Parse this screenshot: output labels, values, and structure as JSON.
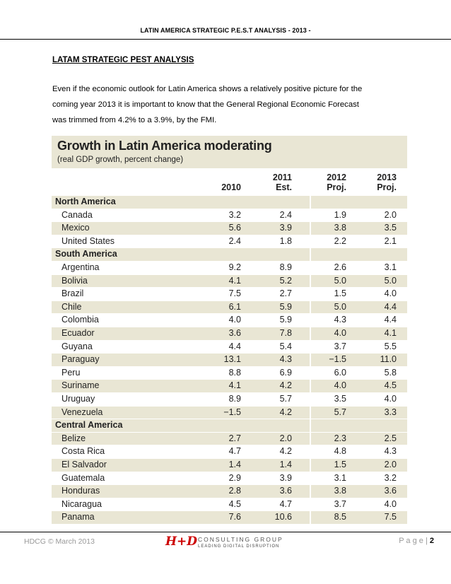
{
  "header": {
    "title": "LATIN AMERICA STRATEGIC P.E.S.T ANALYSIS - 2013 -"
  },
  "section": {
    "heading": "LATAM STRATEGIC PEST ANALYSIS",
    "lines": [
      "Even if the economic outlook for Latin America shows a relatively positive picture for the",
      "coming year 2013 it is important to know that the General Regional Economic Forecast",
      "was trimmed from 4.2% to a 3.9%, by the FMI."
    ]
  },
  "table": {
    "title": "Growth in Latin America moderating",
    "subtitle": "(real GDP growth, percent change)",
    "columns": [
      {
        "line1": "",
        "line2": "2010"
      },
      {
        "line1": "2011",
        "line2": "Est."
      },
      {
        "line1": "2012",
        "line2": "Proj."
      },
      {
        "line1": "2013",
        "line2": "Proj."
      }
    ],
    "rows": [
      {
        "type": "region",
        "label": "North America"
      },
      {
        "type": "country",
        "label": "Canada",
        "values": [
          "3.2",
          "2.4",
          "1.9",
          "2.0"
        ]
      },
      {
        "type": "country",
        "label": "Mexico",
        "values": [
          "5.6",
          "3.9",
          "3.8",
          "3.5"
        ]
      },
      {
        "type": "country",
        "label": "United States",
        "values": [
          "2.4",
          "1.8",
          "2.2",
          "2.1"
        ]
      },
      {
        "type": "region",
        "label": "South America"
      },
      {
        "type": "country",
        "label": "Argentina",
        "values": [
          "9.2",
          "8.9",
          "2.6",
          "3.1"
        ]
      },
      {
        "type": "country",
        "label": "Bolivia",
        "values": [
          "4.1",
          "5.2",
          "5.0",
          "5.0"
        ]
      },
      {
        "type": "country",
        "label": "Brazil",
        "values": [
          "7.5",
          "2.7",
          "1.5",
          "4.0"
        ]
      },
      {
        "type": "country",
        "label": "Chile",
        "values": [
          "6.1",
          "5.9",
          "5.0",
          "4.4"
        ]
      },
      {
        "type": "country",
        "label": "Colombia",
        "values": [
          "4.0",
          "5.9",
          "4.3",
          "4.4"
        ]
      },
      {
        "type": "country",
        "label": "Ecuador",
        "values": [
          "3.6",
          "7.8",
          "4.0",
          "4.1"
        ]
      },
      {
        "type": "country",
        "label": "Guyana",
        "values": [
          "4.4",
          "5.4",
          "3.7",
          "5.5"
        ]
      },
      {
        "type": "country",
        "label": "Paraguay",
        "values": [
          "13.1",
          "4.3",
          "−1.5",
          "11.0"
        ]
      },
      {
        "type": "country",
        "label": "Peru",
        "values": [
          "8.8",
          "6.9",
          "6.0",
          "5.8"
        ]
      },
      {
        "type": "country",
        "label": "Suriname",
        "values": [
          "4.1",
          "4.2",
          "4.0",
          "4.5"
        ]
      },
      {
        "type": "country",
        "label": "Uruguay",
        "values": [
          "8.9",
          "5.7",
          "3.5",
          "4.0"
        ]
      },
      {
        "type": "country",
        "label": "Venezuela",
        "values": [
          "−1.5",
          "4.2",
          "5.7",
          "3.3"
        ]
      },
      {
        "type": "region",
        "label": "Central America"
      },
      {
        "type": "country",
        "label": "Belize",
        "values": [
          "2.7",
          "2.0",
          "2.3",
          "2.5"
        ]
      },
      {
        "type": "country",
        "label": "Costa Rica",
        "values": [
          "4.7",
          "4.2",
          "4.8",
          "4.3"
        ]
      },
      {
        "type": "country",
        "label": "El Salvador",
        "values": [
          "1.4",
          "1.4",
          "1.5",
          "2.0"
        ]
      },
      {
        "type": "country",
        "label": "Guatemala",
        "values": [
          "2.9",
          "3.9",
          "3.1",
          "3.2"
        ]
      },
      {
        "type": "country",
        "label": "Honduras",
        "values": [
          "2.8",
          "3.6",
          "3.8",
          "3.6"
        ]
      },
      {
        "type": "country",
        "label": "Nicaragua",
        "values": [
          "4.5",
          "4.7",
          "3.7",
          "4.0"
        ]
      },
      {
        "type": "country",
        "label": "Panama",
        "values": [
          "7.6",
          "10.6",
          "8.5",
          "7.5"
        ]
      }
    ]
  },
  "footer": {
    "left": "HDCG © March 2013",
    "logo_mark": "H+D",
    "logo_name": "CONSULTING GROUP",
    "logo_tag": "LEADING DIGITAL DISRUPTION",
    "page_label": "P a g e  |",
    "page_number": "2"
  },
  "colors": {
    "table_band": "#e9e6d4",
    "logo_red": "#cc0000"
  }
}
